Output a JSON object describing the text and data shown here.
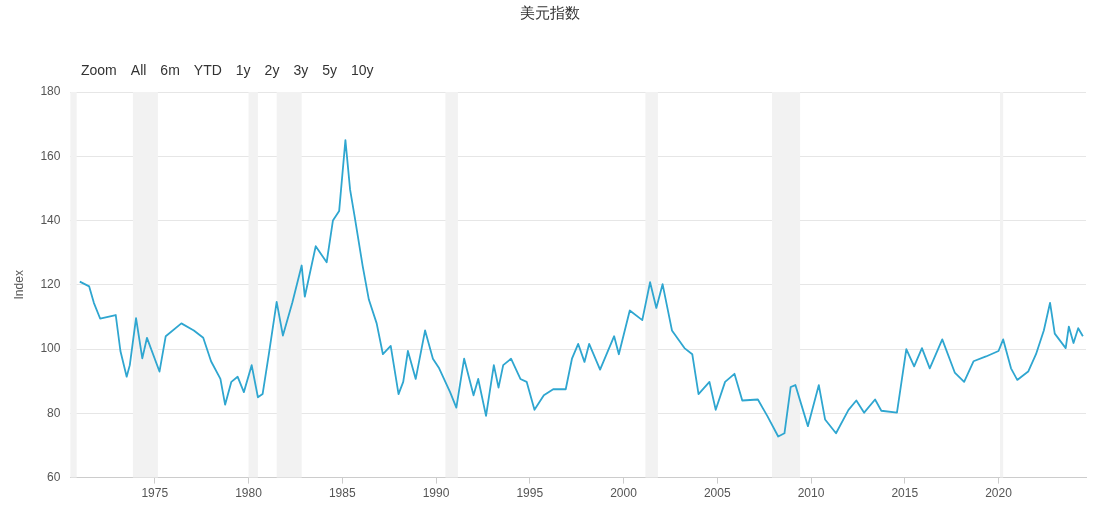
{
  "chart_data": {
    "type": "line",
    "title": "美元指数",
    "ylabel": "Index",
    "annotations": [
      "Zoom",
      "All",
      "6m",
      "YTD",
      "1y",
      "2y",
      "3y",
      "5y",
      "10y"
    ],
    "x": [
      "1971-01",
      "1971-07",
      "1971-10",
      "1972-02",
      "1972-12",
      "1973-03",
      "1973-07",
      "1973-09",
      "1974-01",
      "1974-05",
      "1974-08",
      "1975-04",
      "1975-08",
      "1976-06",
      "1977-02",
      "1977-08",
      "1978-01",
      "1978-07",
      "1978-10",
      "1979-02",
      "1979-06",
      "1979-10",
      "1980-03",
      "1980-07",
      "1980-10",
      "1981-02",
      "1981-07",
      "1981-11",
      "1982-05",
      "1982-11",
      "1983-01",
      "1983-08",
      "1984-03",
      "1984-07",
      "1984-11",
      "1985-03",
      "1985-06",
      "1985-09",
      "1986-02",
      "1986-06",
      "1986-11",
      "1987-03",
      "1987-08",
      "1988-01",
      "1988-04",
      "1988-07",
      "1988-12",
      "1989-06",
      "1989-11",
      "1990-03",
      "1990-10",
      "1991-02",
      "1991-07",
      "1992-01",
      "1992-04",
      "1992-09",
      "1993-02",
      "1993-05",
      "1993-08",
      "1994-01",
      "1994-07",
      "1994-11",
      "1995-04",
      "1995-10",
      "1996-04",
      "1996-12",
      "1997-04",
      "1997-08",
      "1997-12",
      "1998-03",
      "1998-10",
      "1999-07",
      "1999-10",
      "2000-05",
      "2001-01",
      "2001-06",
      "2001-10",
      "2002-02",
      "2002-08",
      "2003-04",
      "2003-09",
      "2004-01",
      "2004-08",
      "2004-12",
      "2005-06",
      "2005-12",
      "2006-05",
      "2007-03",
      "2007-09",
      "2008-04",
      "2008-08",
      "2008-12",
      "2009-03",
      "2009-07",
      "2009-11",
      "2010-06",
      "2010-10",
      "2011-05",
      "2012-01",
      "2012-06",
      "2012-11",
      "2013-06",
      "2013-10",
      "2014-08",
      "2015-02",
      "2015-07",
      "2015-12",
      "2016-05",
      "2017-01",
      "2017-09",
      "2018-03",
      "2018-09",
      "2019-05",
      "2020-01",
      "2020-04",
      "2020-09",
      "2021-01",
      "2021-08",
      "2022-01",
      "2022-06",
      "2022-10",
      "2023-01",
      "2023-08",
      "2023-10",
      "2024-01",
      "2024-04",
      "2024-07"
    ],
    "series": [
      {
        "color": "#2fa6d0",
        "values": [
          121.0,
          119.5,
          114.4,
          109.5,
          110.6,
          99.4,
          91.4,
          95.0,
          109.6,
          97.1,
          103.5,
          93.0,
          104.0,
          108.0,
          105.8,
          103.5,
          96.2,
          90.7,
          82.7,
          89.8,
          91.4,
          86.6,
          95.0,
          85.0,
          86.0,
          98.4,
          114.7,
          104.2,
          114.4,
          126.0,
          116.3,
          132.0,
          127.0,
          140.0,
          143.0,
          165.0,
          149.6,
          141.0,
          126.0,
          115.4,
          108.0,
          98.4,
          101.0,
          86.0,
          89.8,
          99.4,
          90.7,
          105.8,
          97.0,
          94.0,
          86.6,
          81.8,
          97.0,
          85.6,
          90.7,
          79.2,
          95.0,
          88.0,
          95.0,
          97.0,
          90.7,
          89.8,
          81.1,
          85.6,
          87.5,
          87.5,
          97.0,
          101.6,
          96.0,
          101.6,
          93.6,
          104.0,
          98.4,
          112.0,
          109.0,
          120.8,
          112.8,
          120.2,
          105.8,
          100.3,
          98.4,
          86.0,
          89.8,
          81.1,
          89.8,
          92.3,
          84.0,
          84.3,
          79.2,
          72.8,
          73.8,
          88.2,
          88.8,
          82.4,
          76.0,
          88.8,
          78.1,
          73.8,
          81.1,
          84.0,
          80.2,
          84.3,
          80.8,
          80.2,
          100.0,
          94.6,
          100.3,
          94.0,
          103.0,
          92.7,
          89.8,
          96.2,
          97.7,
          99.4,
          103.0,
          94.0,
          90.4,
          93.0,
          98.4,
          105.8,
          114.4,
          104.8,
          100.3,
          107.0,
          101.9,
          106.5,
          104.0
        ]
      }
    ],
    "xlim": [
      "1970-07",
      "2024-09"
    ],
    "xticks": [
      "1975",
      "1980",
      "1985",
      "1990",
      "1995",
      "2000",
      "2005",
      "2010",
      "2015",
      "2020"
    ],
    "ylim": [
      60,
      180
    ],
    "yticks": [
      60,
      80,
      100,
      120,
      140,
      160,
      180
    ],
    "grid": "y",
    "marker": "none",
    "line_style": "solid",
    "bands": [
      {
        "axis": "x",
        "from": "1970-07",
        "to": "1970-11",
        "color": "#f2f2f2"
      },
      {
        "axis": "x",
        "from": "1973-11",
        "to": "1975-03",
        "color": "#f2f2f2"
      },
      {
        "axis": "x",
        "from": "1980-01",
        "to": "1980-07",
        "color": "#f2f2f2"
      },
      {
        "axis": "x",
        "from": "1981-07",
        "to": "1982-11",
        "color": "#f2f2f2"
      },
      {
        "axis": "x",
        "from": "1990-07",
        "to": "1991-03",
        "color": "#f2f2f2"
      },
      {
        "axis": "x",
        "from": "2001-03",
        "to": "2001-11",
        "color": "#f2f2f2"
      },
      {
        "axis": "x",
        "from": "2007-12",
        "to": "2009-06",
        "color": "#f2f2f2"
      },
      {
        "axis": "x",
        "from": "2020-02",
        "to": "2020-04",
        "color": "#f2f2f2"
      }
    ]
  }
}
